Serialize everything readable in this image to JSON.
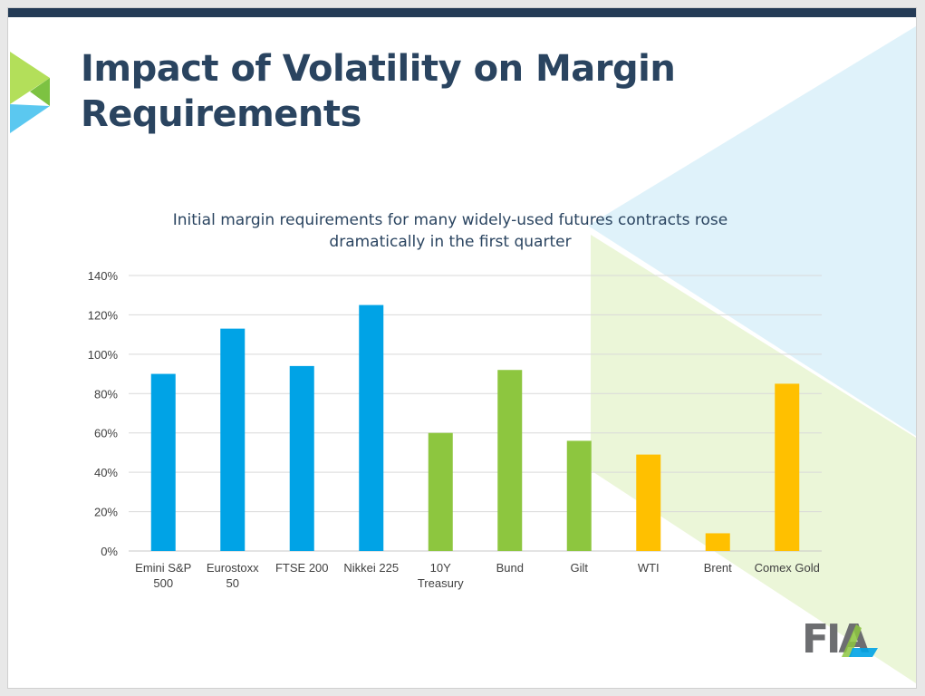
{
  "slide": {
    "title": "Impact of Volatility on Margin Requirements",
    "logo_text": "FIA"
  },
  "colors": {
    "top_bar": "#243b56",
    "title": "#2a4460",
    "equity": "#00a3e6",
    "rates": "#8dc63f",
    "commodity": "#ffc000",
    "grid": "#d9d9d9"
  },
  "chart_data": {
    "type": "bar",
    "title": "Initial margin requirements for many widely-used futures contracts rose dramatically in the first quarter",
    "categories": [
      "Emini S&P 500",
      "Eurostoxx 50",
      "FTSE 200",
      "Nikkei 225",
      "10Y Treasury",
      "Bund",
      "Gilt",
      "WTI",
      "Brent",
      "Comex Gold"
    ],
    "category_lines": [
      [
        "Emini S&P",
        "500"
      ],
      [
        "Eurostoxx",
        "50"
      ],
      [
        "FTSE 200"
      ],
      [
        "Nikkei 225"
      ],
      [
        "10Y",
        "Treasury"
      ],
      [
        "Bund"
      ],
      [
        "Gilt"
      ],
      [
        "WTI"
      ],
      [
        "Brent"
      ],
      [
        "Comex Gold"
      ]
    ],
    "values": [
      90,
      113,
      94,
      125,
      60,
      92,
      56,
      49,
      9,
      85
    ],
    "bar_colors": [
      "#00a3e6",
      "#00a3e6",
      "#00a3e6",
      "#00a3e6",
      "#8dc63f",
      "#8dc63f",
      "#8dc63f",
      "#ffc000",
      "#ffc000",
      "#ffc000"
    ],
    "ylim": [
      0,
      140
    ],
    "yticks": [
      0,
      20,
      40,
      60,
      80,
      100,
      120,
      140
    ],
    "ytick_labels": [
      "0%",
      "20%",
      "40%",
      "60%",
      "80%",
      "100%",
      "120%",
      "140%"
    ],
    "grid": true,
    "legend": "none",
    "xlabel": "",
    "ylabel": ""
  }
}
